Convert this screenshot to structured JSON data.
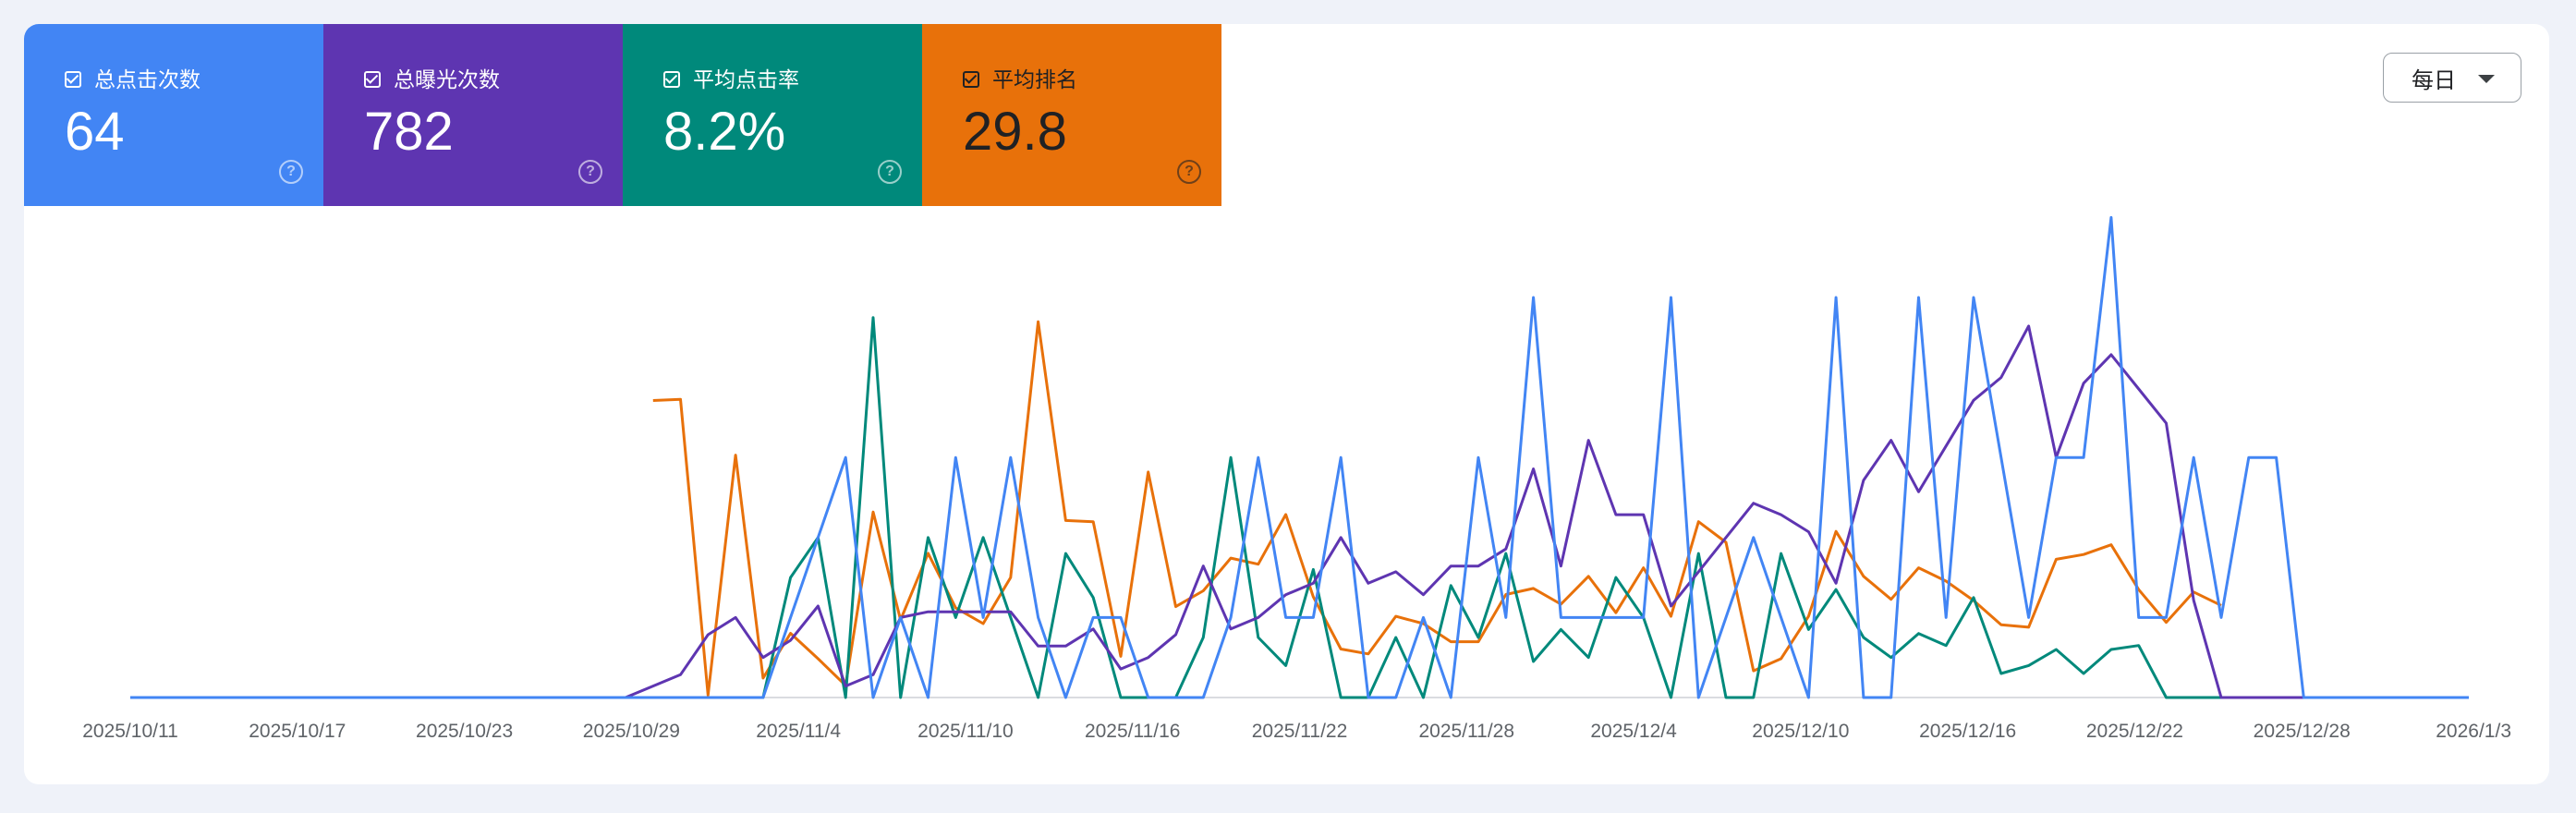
{
  "metrics": [
    {
      "label": "总点击次数",
      "value": "64",
      "color": "#4285f4",
      "dark_text": false
    },
    {
      "label": "总曝光次数",
      "value": "782",
      "color": "#5e35b1",
      "dark_text": false
    },
    {
      "label": "平均点击率",
      "value": "8.2%",
      "color": "#00897b",
      "dark_text": false
    },
    {
      "label": "平均排名",
      "value": "29.8",
      "color": "#e8710a",
      "dark_text": true
    }
  ],
  "help_glyph": "?",
  "period_select": {
    "selected": "每日"
  },
  "chart_data": {
    "type": "line",
    "x_start": "2025/10/11",
    "x_end": "2026/1/3",
    "x_tick_labels": [
      "2025/10/11",
      "2025/10/17",
      "2025/10/23",
      "2025/10/29",
      "2025/11/4",
      "2025/11/10",
      "2025/11/16",
      "2025/11/22",
      "2025/11/28",
      "2025/12/4",
      "2025/12/10",
      "2025/12/16",
      "2025/12/22",
      "2025/12/28",
      "2026/1/3"
    ],
    "x_axis_line": true,
    "grid": false,
    "legend": "metric-cards-top",
    "series": [
      {
        "metric": "clicks",
        "color": "#4285f4",
        "ymax": 5,
        "values": [
          0,
          0,
          0,
          0,
          0,
          0,
          0,
          0,
          0,
          0,
          0,
          0,
          0,
          0,
          0,
          0,
          0,
          0,
          0,
          0,
          0,
          0,
          0,
          0,
          1,
          2,
          3,
          0,
          1,
          0,
          3,
          1,
          3,
          1,
          0,
          1,
          1,
          0,
          0,
          0,
          1,
          3,
          1,
          1,
          3,
          0,
          0,
          1,
          0,
          3,
          1,
          5,
          1,
          1,
          1,
          1,
          5,
          0,
          1,
          2,
          1,
          0,
          5,
          0,
          0,
          5,
          1,
          5,
          3,
          1,
          3,
          3,
          6,
          1,
          1,
          3,
          1,
          3,
          3,
          0,
          0,
          0,
          0,
          0,
          0,
          0
        ]
      },
      {
        "metric": "impressions",
        "color": "#5e35b1",
        "ymax": 70,
        "values": [
          0,
          0,
          0,
          0,
          0,
          0,
          0,
          0,
          0,
          0,
          0,
          0,
          0,
          0,
          0,
          0,
          0,
          0,
          0,
          2,
          4,
          11,
          14,
          7,
          10,
          16,
          2,
          4,
          14,
          15,
          15,
          15,
          15,
          9,
          9,
          12,
          5,
          7,
          11,
          23,
          12,
          14,
          18,
          20,
          28,
          20,
          22,
          18,
          23,
          23,
          26,
          40,
          23,
          45,
          32,
          32,
          16,
          22,
          28,
          34,
          32,
          29,
          20,
          38,
          45,
          36,
          44,
          52,
          56,
          65,
          42,
          55,
          60,
          54,
          48,
          17,
          0,
          0,
          0,
          0,
          0,
          0,
          0,
          0,
          0,
          0
        ]
      },
      {
        "metric": "ctr",
        "color": "#00897b",
        "ymax": 100,
        "values": [
          0,
          0,
          0,
          0,
          0,
          0,
          0,
          0,
          0,
          0,
          0,
          0,
          0,
          0,
          0,
          0,
          0,
          0,
          0,
          0,
          0,
          0,
          0,
          0,
          30,
          40,
          0,
          95,
          0,
          40,
          20,
          40,
          20,
          0,
          36,
          25,
          0,
          0,
          0,
          15,
          60,
          15,
          8,
          32,
          0,
          0,
          15,
          0,
          28,
          15,
          36,
          9,
          17,
          10,
          30,
          20,
          0,
          36,
          0,
          0,
          36,
          17,
          27,
          15,
          10,
          16,
          13,
          25,
          6,
          8,
          12,
          6,
          12,
          13,
          0,
          0,
          0,
          0,
          0,
          0,
          0,
          0,
          0,
          0,
          0,
          0
        ]
      },
      {
        "metric": "position",
        "color": "#e8710a",
        "ymax": 34,
        "values": [
          null,
          null,
          null,
          null,
          null,
          null,
          null,
          null,
          null,
          null,
          null,
          null,
          null,
          null,
          null,
          null,
          null,
          null,
          null,
          9.5,
          9.4,
          33.8,
          14.0,
          32.4,
          28.7,
          30.8,
          33.0,
          18.7,
          27.6,
          22.1,
          26.6,
          27.9,
          24.1,
          3.0,
          19.4,
          19.5,
          30.6,
          15.4,
          26.5,
          25.2,
          22.5,
          23.0,
          18.9,
          25.7,
          30.0,
          30.4,
          27.3,
          27.9,
          29.4,
          29.4,
          25.5,
          25.0,
          26.3,
          24.0,
          27.0,
          23.3,
          27.3,
          19.5,
          21.2,
          31.8,
          30.8,
          27.3,
          20.3,
          24.0,
          25.9,
          23.3,
          24.4,
          26.0,
          28.0,
          28.2,
          22.6,
          22.2,
          21.4,
          25.1,
          27.8,
          25.3,
          26.4
        ]
      }
    ]
  }
}
